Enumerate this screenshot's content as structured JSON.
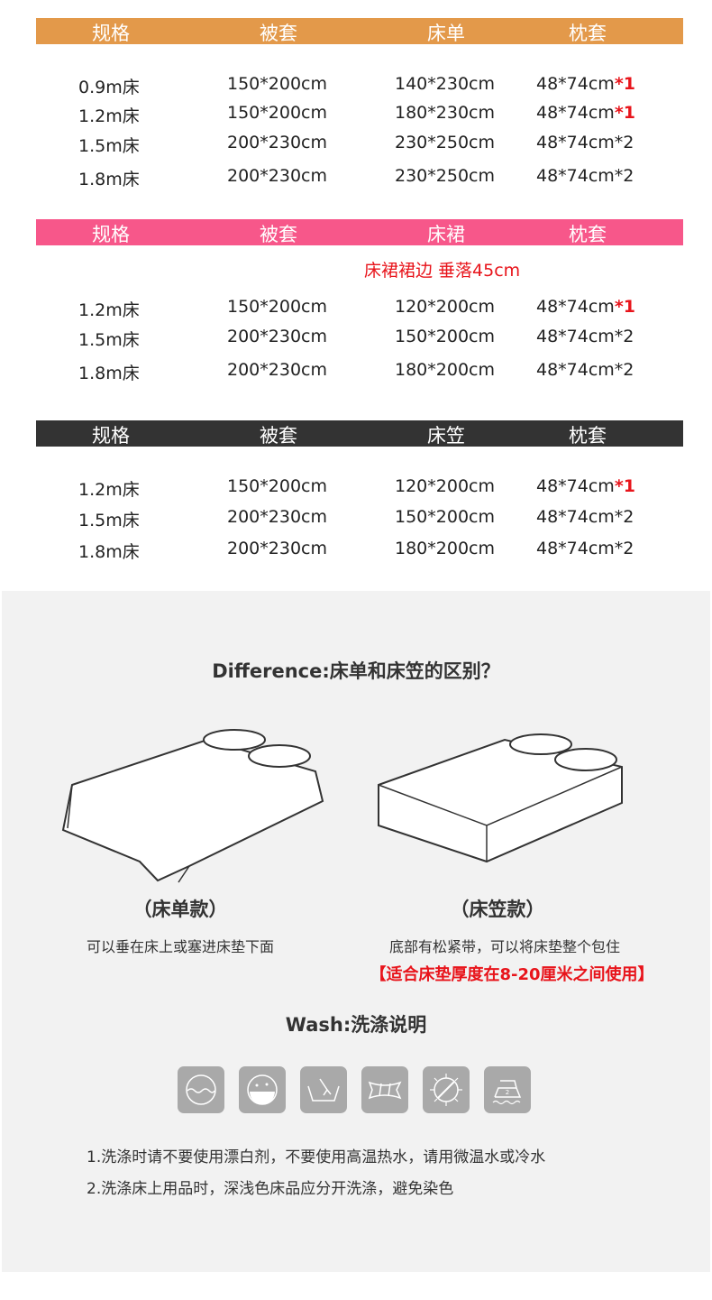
{
  "tables": [
    {
      "color": "#E3994A",
      "headers": [
        "规格",
        "被套",
        "床单",
        "枕套"
      ],
      "rows": [
        [
          "0.9m床",
          "150*200cm",
          "140*230cm",
          "48*74cm",
          "*1"
        ],
        [
          "1.2m床",
          "150*200cm",
          "180*230cm",
          "48*74cm",
          "*1"
        ],
        [
          "1.5m床",
          "200*230cm",
          "230*250cm",
          "48*74cm*2",
          ""
        ],
        [
          "1.8m床",
          "200*230cm",
          "230*250cm",
          "48*74cm*2",
          ""
        ]
      ]
    },
    {
      "color": "#F7578A",
      "headers": [
        "规格",
        "被套",
        "床裙",
        "枕套"
      ],
      "note": "床裙裙边 垂落45cm",
      "rows": [
        [
          "1.2m床",
          "150*200cm",
          "120*200cm",
          "48*74cm",
          "*1"
        ],
        [
          "1.5m床",
          "200*230cm",
          "150*200cm",
          "48*74cm*2",
          ""
        ],
        [
          "1.8m床",
          "200*230cm",
          "180*200cm",
          "48*74cm*2",
          ""
        ]
      ]
    },
    {
      "color": "#333333",
      "headers": [
        "规格",
        "被套",
        "床笠",
        "枕套"
      ],
      "rows": [
        [
          "1.2m床",
          "150*200cm",
          "120*200cm",
          "48*74cm",
          "*1"
        ],
        [
          "1.5m床",
          "200*230cm",
          "150*200cm",
          "48*74cm*2",
          ""
        ],
        [
          "1.8m床",
          "200*230cm",
          "180*200cm",
          "48*74cm*2",
          ""
        ]
      ]
    }
  ],
  "difference": {
    "title": "Difference:床单和床笠的区别？",
    "left": {
      "label": "（床单款）",
      "desc": "可以垂在床上或塞进床垫下面"
    },
    "right": {
      "label": "（床笠款）",
      "desc": "底部有松紧带，可以将床垫整个包住",
      "note": "【适合床垫厚度在8-20厘米之间使用】"
    }
  },
  "wash": {
    "title": "Wash:洗涤说明",
    "icons": [
      "machine-wash-icon",
      "wash-temperature-icon",
      "hand-wash-icon",
      "wring-icon",
      "no-tumble-dry-icon",
      "iron-2-icon"
    ],
    "iron_level": "2",
    "notes": [
      "1.洗涤时请不要使用漂白剂，不要使用高温热水，请用微温水或冷水",
      "2.洗涤床上用品时，深浅色床品应分开洗涤，避免染色"
    ]
  }
}
